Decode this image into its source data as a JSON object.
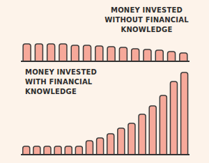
{
  "chart_data": [
    {
      "type": "bar",
      "title": "MONEY INVESTED WITHOUT FINANCIAL KNOWLEDGE",
      "categories": [
        null,
        null,
        null,
        null,
        null,
        null,
        null,
        null,
        null,
        null,
        null,
        null,
        null,
        null
      ],
      "values": [
        25,
        25,
        25,
        25,
        23,
        23,
        22,
        21,
        20,
        18,
        17,
        16,
        14,
        12
      ],
      "color": "#f6a99a",
      "ylim": [
        0,
        32
      ],
      "tick_labels": false
    },
    {
      "type": "bar",
      "title": "MONEY INVESTED WITH FINANCIAL KNOWLEDGE",
      "categories": [
        null,
        null,
        null,
        null,
        null,
        null,
        null,
        null,
        null,
        null,
        null,
        null,
        null,
        null,
        null,
        null
      ],
      "values": [
        12,
        12,
        12,
        12,
        12,
        12,
        20,
        24,
        30,
        38,
        45,
        58,
        70,
        85,
        105,
        118
      ],
      "color": "#f6a99a",
      "ylim": [
        0,
        126
      ],
      "tick_labels": false
    }
  ]
}
